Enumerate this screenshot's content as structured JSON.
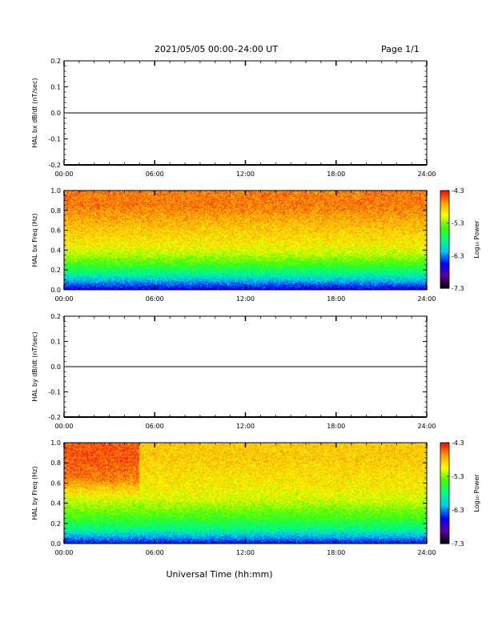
{
  "header": {
    "title": "2021/05/05  00:00–24:00 UT",
    "page": "Page 1/1"
  },
  "x_axis": {
    "label": "Universal Time (hh:mm)",
    "ticks": [
      "00:00",
      "06:00",
      "12:00",
      "18:00",
      "24:00"
    ],
    "range_hours": [
      0,
      24
    ]
  },
  "colorbar": {
    "label": "Log₁₀ Power",
    "ticks": [
      "-4.3",
      "-5.3",
      "-6.3",
      "-7.3"
    ],
    "range": [
      -7.3,
      -4.3
    ],
    "colors": [
      "#000000",
      "#5a00a0",
      "#0000ff",
      "#00c8ff",
      "#00ff80",
      "#40ff00",
      "#ffff00",
      "#ffa000",
      "#ff0000"
    ]
  },
  "chart_data": [
    {
      "type": "line",
      "ylabel": "HAL bx dB/dt (nT/sec)",
      "ylim": [
        -0.2,
        0.2
      ],
      "yticks": [
        "0.2",
        "0.1",
        "0.0",
        "-0.1",
        "-0.2"
      ],
      "x": [
        0,
        24
      ],
      "series": [
        {
          "values": [
            0.0,
            0.0
          ]
        }
      ]
    },
    {
      "type": "heatmap",
      "ylabel": "HAL bx Freq (Hz)",
      "ylim": [
        0.0,
        1.0
      ],
      "yticks": [
        "1.0",
        "0.8",
        "0.6",
        "0.4",
        "0.2",
        "0.0"
      ],
      "freq_bins": [
        0.05,
        0.15,
        0.25,
        0.35,
        0.45,
        0.55,
        0.65,
        0.75,
        0.85,
        0.95
      ],
      "log10_power_profile": [
        -6.4,
        -5.9,
        -5.5,
        -5.2,
        -5.0,
        -4.9,
        -4.8,
        -4.7,
        -4.6,
        -4.6
      ],
      "early_enhancement": {
        "hours": [
          0,
          0
        ],
        "delta": 0.0
      }
    },
    {
      "type": "line",
      "ylabel": "HAL by dB/dt (nT/sec)",
      "ylim": [
        -0.2,
        0.2
      ],
      "yticks": [
        "0.2",
        "0.1",
        "0.0",
        "-0.1",
        "-0.2"
      ],
      "x": [
        0,
        24
      ],
      "series": [
        {
          "values": [
            0.0,
            0.0
          ]
        }
      ]
    },
    {
      "type": "heatmap",
      "ylabel": "HAL by Freq (Hz)",
      "ylim": [
        0.0,
        1.0
      ],
      "yticks": [
        "1.0",
        "0.8",
        "0.6",
        "0.4",
        "0.2",
        "0.0"
      ],
      "freq_bins": [
        0.05,
        0.15,
        0.25,
        0.35,
        0.45,
        0.55,
        0.65,
        0.75,
        0.85,
        0.95
      ],
      "log10_power_profile": [
        -6.3,
        -5.8,
        -5.5,
        -5.3,
        -5.1,
        -5.0,
        -4.95,
        -4.9,
        -4.85,
        -4.85
      ],
      "early_enhancement": {
        "hours": [
          0,
          5
        ],
        "delta": 0.35
      }
    }
  ]
}
